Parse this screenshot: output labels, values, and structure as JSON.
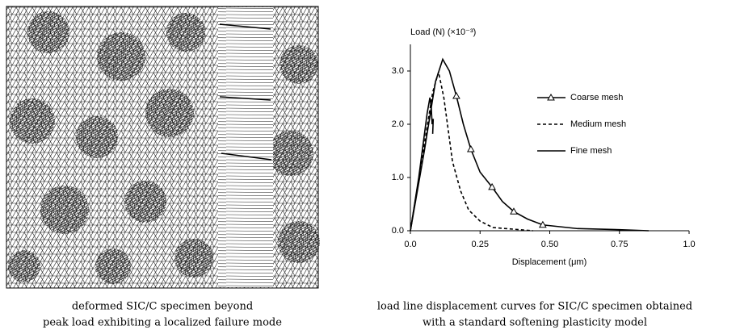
{
  "captions": {
    "left": [
      "deformed SIC/C specimen beyond",
      "peak load exhibiting a localized failure mode"
    ],
    "right": [
      "load line displacement curves for SIC/C specimen obtained",
      "with a standard softening plasticity model"
    ]
  },
  "chart_data": {
    "type": "line",
    "y_label": "Load (N) (×10⁻³)",
    "x_label": "Displacement (μm)",
    "xlim": [
      0,
      1.0
    ],
    "ylim": [
      0,
      3.5
    ],
    "xticks": [
      {
        "value": 0,
        "label": "0.0"
      },
      0.25,
      {
        "value": 0.5,
        "label": "0.50"
      },
      0.75,
      {
        "value": 1,
        "label": "1.0"
      }
    ],
    "yticks": [
      {
        "value": 0,
        "label": "0.0"
      },
      {
        "value": 1,
        "label": "1.0"
      },
      {
        "value": 2,
        "label": "2.0"
      },
      {
        "value": 3,
        "label": "3.0"
      }
    ],
    "series": [
      {
        "name": "Coarse mesh",
        "color": "#000000",
        "dash": false,
        "marker": "triangle",
        "x": [
          0,
          0.05,
          0.09,
          0.116,
          0.14,
          0.165,
          0.19,
          0.217,
          0.25,
          0.293,
          0.33,
          0.371,
          0.42,
          0.475,
          0.6,
          0.75,
          0.855
        ],
        "values": [
          0,
          1.5,
          2.8,
          3.22,
          3.0,
          2.53,
          2.0,
          1.53,
          1.1,
          0.82,
          0.55,
          0.36,
          0.22,
          0.11,
          0.04,
          0.02,
          0.0
        ],
        "markers": [
          false,
          false,
          false,
          false,
          false,
          true,
          false,
          true,
          false,
          true,
          false,
          true,
          false,
          true,
          false,
          false,
          false
        ]
      },
      {
        "name": "Medium mesh",
        "color": "#000000",
        "dash": true,
        "x": [
          0,
          0.04,
          0.08,
          0.101,
          0.12,
          0.151,
          0.18,
          0.209,
          0.25,
          0.296,
          0.44
        ],
        "values": [
          0,
          1.3,
          2.6,
          2.98,
          2.5,
          1.3,
          0.75,
          0.39,
          0.18,
          0.06,
          0.0
        ]
      },
      {
        "name": "Fine mesh",
        "color": "#000000",
        "dash": false,
        "x": [
          0,
          0.03,
          0.06,
          0.07,
          0.075,
          0.078,
          0.082,
          0.08
        ],
        "values": [
          0,
          1.0,
          2.2,
          2.5,
          2.3,
          2.0,
          2.1,
          1.82
        ]
      }
    ]
  }
}
